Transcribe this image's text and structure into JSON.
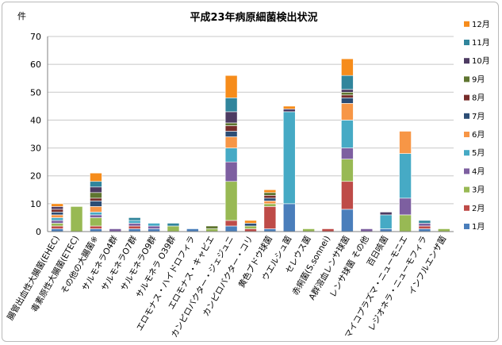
{
  "chart_data": {
    "type": "bar",
    "stacked": true,
    "title": "平成23年病原細菌検出状況",
    "ylabel": "件",
    "ylim": [
      0,
      70
    ],
    "yticks": [
      0,
      10,
      20,
      30,
      40,
      50,
      60,
      70
    ],
    "grid": true,
    "legend_position": "right",
    "categories": [
      "腸管出血性大腸菌(EHEC)",
      "毒素原性大腸菌(ETEC)",
      "その他の大腸菌※",
      "サルモネラO4群",
      "サルモネラO7群",
      "サルモネラO9群",
      "サルモネラ O39群",
      "エロモナス・ハイドロフィラ",
      "エロモナス・キャビエ",
      "カンピロバクター・ジェジュニ",
      "カンピロバクター・コリ",
      "黄色ブドウ球菌",
      "ウエルシュ菌",
      "セレウス菌",
      "赤痢菌(S.sonnei)",
      "A群溶血レンサ球菌",
      "レンサ球菌 その他",
      "百日咳菌",
      "マイコプラズマ・ニューモニエ",
      "レジオネラ・ニューモフィラ",
      "インフルエンザ菌"
    ],
    "series": [
      {
        "name": "1月",
        "color": "#4a7ebb",
        "values": [
          1,
          0,
          1,
          0,
          1,
          1,
          0,
          1,
          0,
          2,
          0,
          1,
          10,
          0,
          0,
          8,
          0,
          1,
          0,
          1,
          0
        ]
      },
      {
        "name": "2月",
        "color": "#be4b48",
        "values": [
          1,
          0,
          1,
          0,
          1,
          0,
          0,
          0,
          0,
          2,
          1,
          8,
          0,
          0,
          1,
          10,
          0,
          0,
          0,
          1,
          0
        ]
      },
      {
        "name": "3月",
        "color": "#98b954",
        "values": [
          1,
          9,
          3,
          0,
          0,
          0,
          2,
          0,
          1,
          14,
          1,
          1,
          0,
          1,
          0,
          8,
          0,
          0,
          6,
          0,
          1
        ]
      },
      {
        "name": "4月",
        "color": "#7d5fa0",
        "values": [
          1,
          0,
          1,
          1,
          1,
          1,
          0,
          0,
          0,
          7,
          0,
          0,
          0,
          0,
          0,
          4,
          1,
          0,
          6,
          1,
          0
        ]
      },
      {
        "name": "5月",
        "color": "#46aac5",
        "values": [
          1,
          0,
          1,
          0,
          1,
          1,
          0,
          0,
          0,
          5,
          0,
          0,
          33,
          0,
          0,
          10,
          0,
          5,
          16,
          0,
          0
        ]
      },
      {
        "name": "6月",
        "color": "#f79646",
        "values": [
          1,
          0,
          2,
          0,
          0,
          0,
          0,
          0,
          0,
          4,
          0,
          1,
          0,
          0,
          0,
          6,
          0,
          0,
          8,
          0,
          0
        ]
      },
      {
        "name": "7月",
        "color": "#2c4d75",
        "values": [
          1,
          0,
          2,
          0,
          0,
          0,
          0,
          0,
          0,
          2,
          1,
          1,
          0,
          0,
          0,
          2,
          0,
          0,
          0,
          0,
          0
        ]
      },
      {
        "name": "8月",
        "color": "#772c2a",
        "values": [
          1,
          0,
          1,
          0,
          0,
          0,
          0,
          0,
          0,
          2,
          0,
          1,
          0,
          0,
          0,
          1,
          0,
          0,
          0,
          0,
          0
        ]
      },
      {
        "name": "9月",
        "color": "#5f7530",
        "values": [
          0,
          0,
          2,
          0,
          0,
          0,
          0,
          0,
          1,
          1,
          0,
          1,
          0,
          0,
          0,
          1,
          0,
          0,
          0,
          0,
          0
        ]
      },
      {
        "name": "10月",
        "color": "#4d3b62",
        "values": [
          1,
          0,
          2,
          0,
          0,
          0,
          0,
          0,
          0,
          4,
          0,
          0,
          1,
          0,
          0,
          1,
          0,
          1,
          0,
          0,
          0
        ]
      },
      {
        "name": "11月",
        "color": "#31859c",
        "values": [
          0,
          0,
          2,
          0,
          1,
          0,
          1,
          0,
          0,
          5,
          0,
          0,
          0,
          0,
          0,
          5,
          0,
          0,
          0,
          1,
          0
        ]
      },
      {
        "name": "12月",
        "color": "#f68c1b",
        "values": [
          1,
          0,
          3,
          0,
          0,
          0,
          0,
          0,
          0,
          8,
          1,
          1,
          1,
          0,
          0,
          6,
          0,
          0,
          0,
          0,
          0
        ]
      }
    ]
  }
}
